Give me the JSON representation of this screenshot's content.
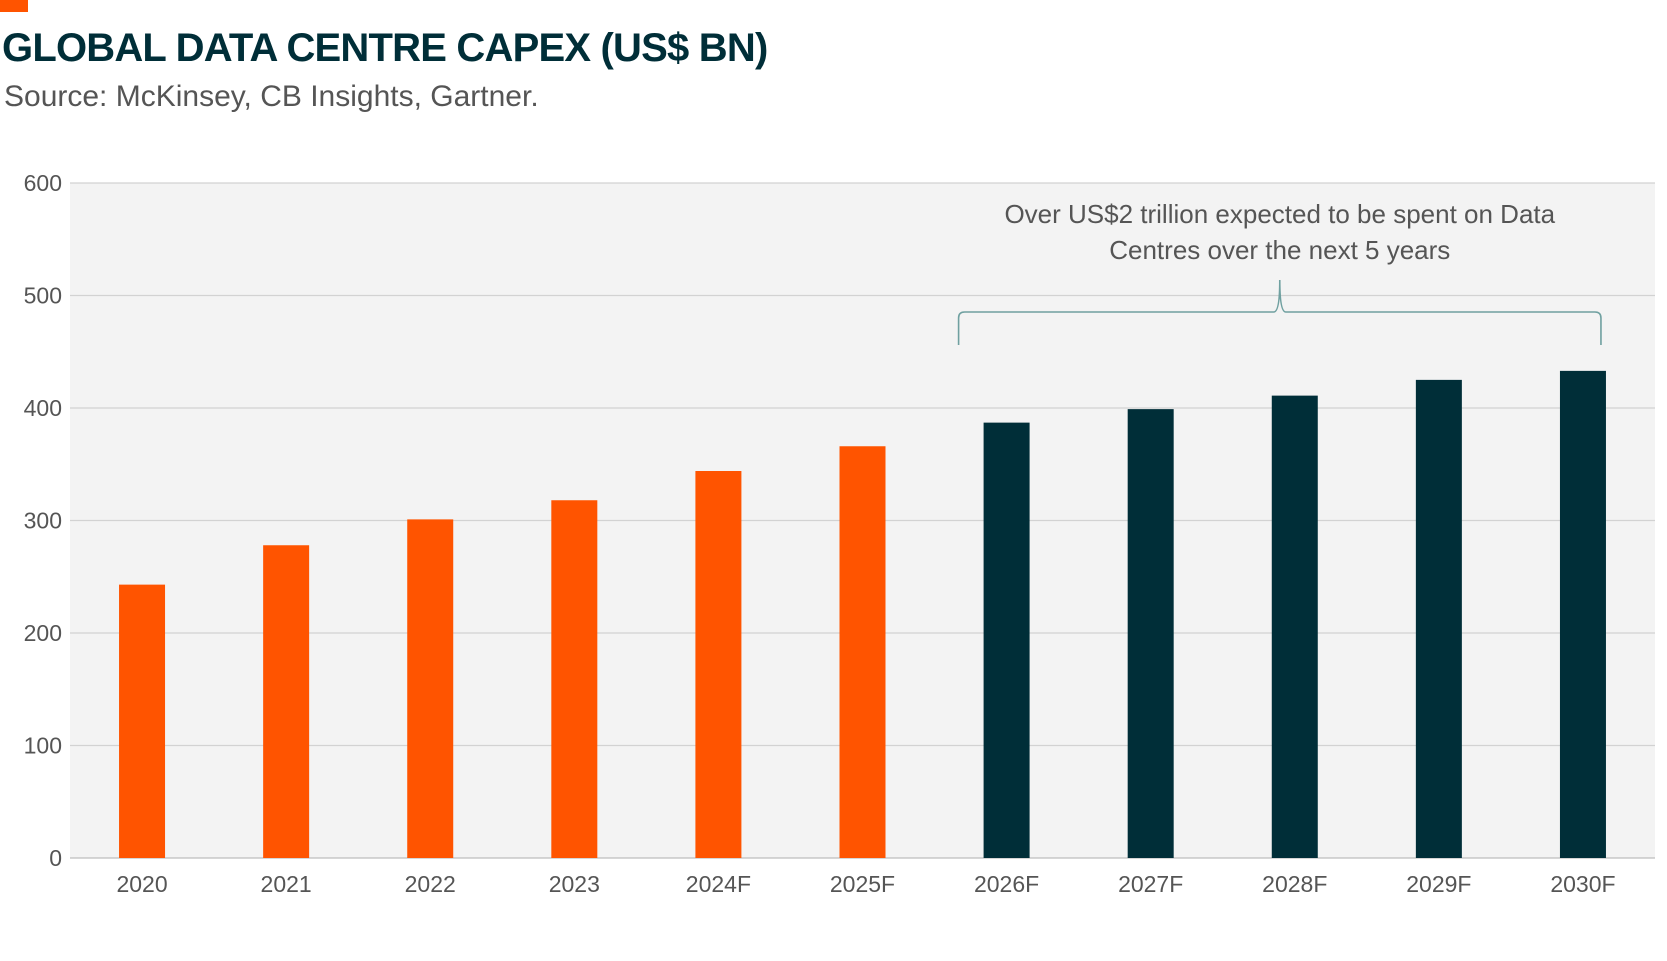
{
  "chart_data": {
    "type": "bar",
    "title": "GLOBAL DATA CENTRE CAPEX (US$ BN)",
    "subtitle": "Source: McKinsey, CB Insights, Gartner.",
    "categories": [
      "2020",
      "2021",
      "2022",
      "2023",
      "2024F",
      "2025F",
      "2026F",
      "2027F",
      "2028F",
      "2029F",
      "2030F"
    ],
    "values": [
      243,
      278,
      301,
      318,
      344,
      366,
      387,
      399,
      411,
      425,
      433
    ],
    "bar_colors": [
      "#ff5400",
      "#ff5400",
      "#ff5400",
      "#ff5400",
      "#ff5400",
      "#ff5400",
      "#002e38",
      "#002e38",
      "#002e38",
      "#002e38",
      "#002e38"
    ],
    "ylim": [
      0,
      600
    ],
    "yticks": [
      0,
      100,
      200,
      300,
      400,
      500,
      600
    ],
    "grid": true,
    "plot_background": "#f3f3f3",
    "annotation": {
      "lines": [
        "Over US$2 trillion expected to be spent on Data",
        "Centres over the next 5 years"
      ],
      "bracket_from": "2026F",
      "bracket_to": "2030F",
      "bracket_color": "#6fa0a0"
    }
  },
  "accent_color": "#ff5400"
}
